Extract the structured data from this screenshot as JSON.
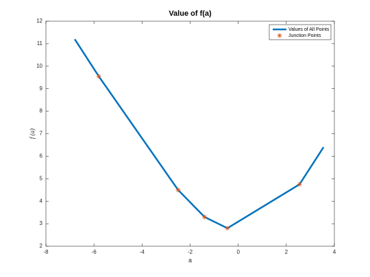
{
  "chart_data": {
    "type": "line",
    "title": "Value of f(a)",
    "xlabel": "a",
    "ylabel": "f (a)",
    "series": [
      {
        "name": "Values of All Points",
        "color": "#0072BD",
        "marker": "none",
        "x": [
          -6.8,
          -5.8,
          -2.5,
          -1.4,
          -0.45,
          2.55,
          3.55
        ],
        "values": [
          11.2,
          9.55,
          4.5,
          3.3,
          2.8,
          4.75,
          6.4
        ]
      },
      {
        "name": "Junction Points",
        "color": "#D95319",
        "marker": "*",
        "x": [
          -5.8,
          -2.5,
          -1.4,
          -0.45,
          2.55
        ],
        "values": [
          9.55,
          4.5,
          3.3,
          2.8,
          4.75
        ]
      }
    ],
    "xlim": [
      -8,
      4
    ],
    "xticks": [
      -8,
      -6,
      -4,
      -2,
      0,
      2,
      4
    ],
    "ylim": [
      2,
      12
    ],
    "yticks": [
      2,
      3,
      4,
      5,
      6,
      7,
      8,
      9,
      10,
      11,
      12
    ],
    "grid": false,
    "legend": "northeast"
  }
}
